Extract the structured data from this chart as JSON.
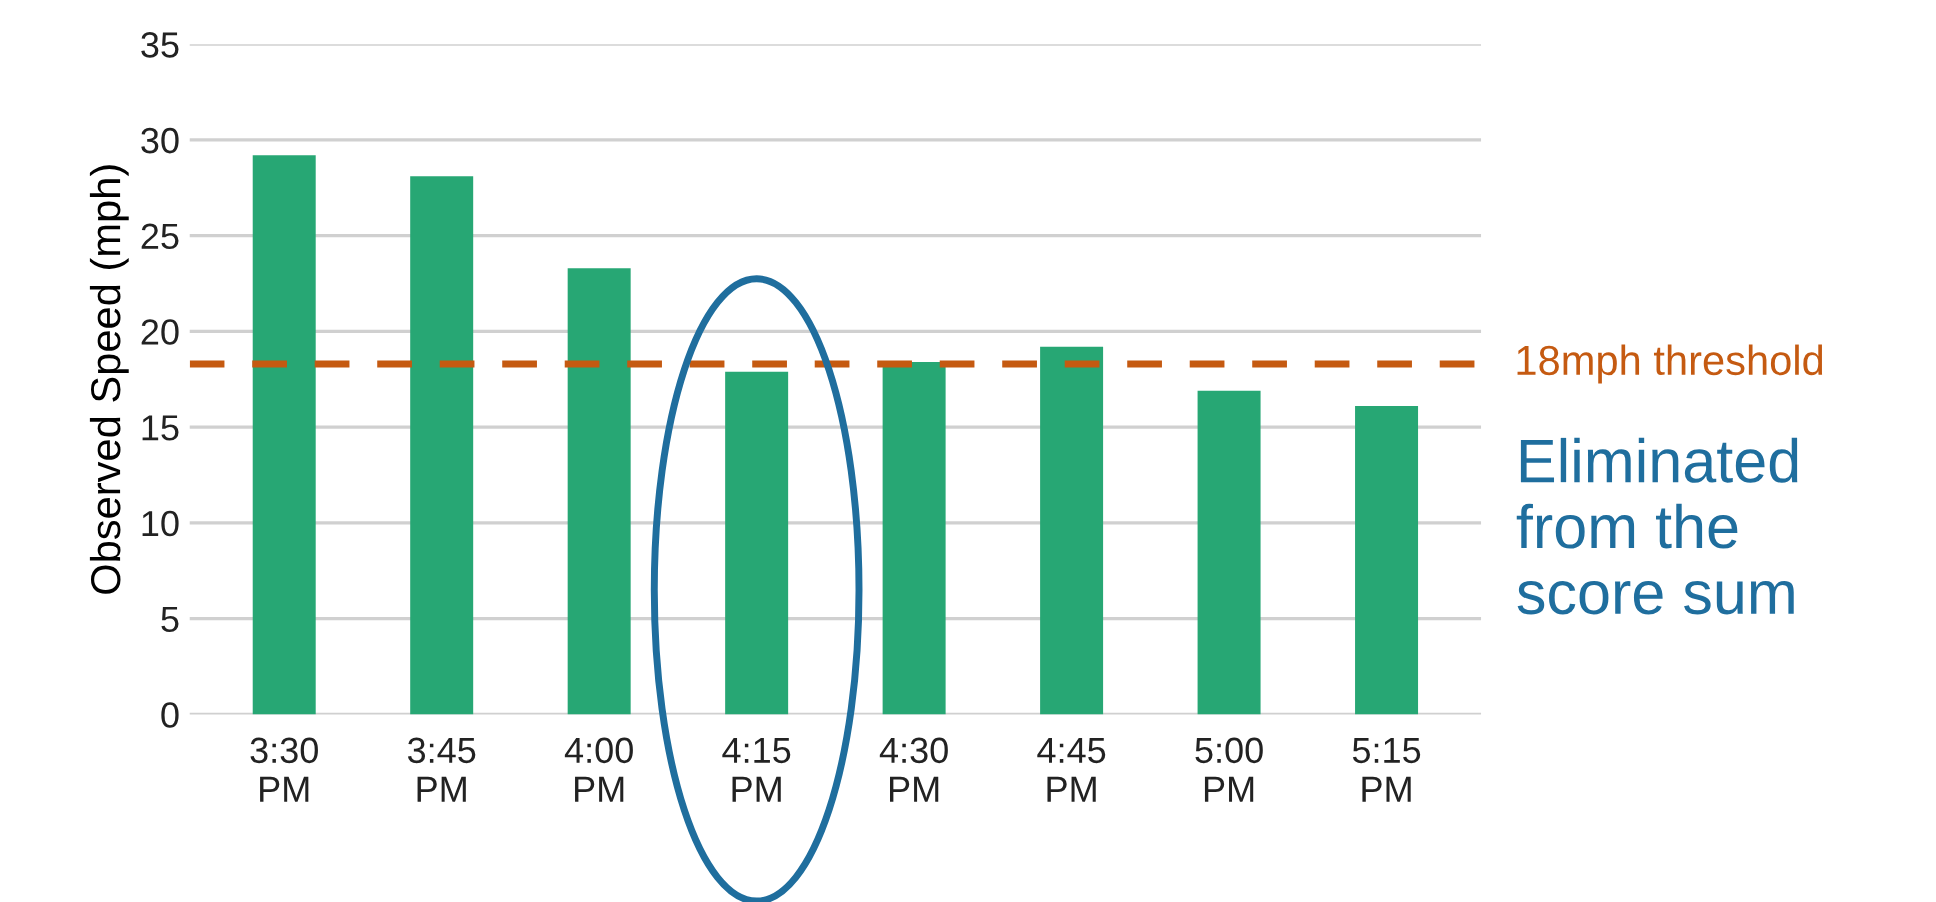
{
  "chart_data": {
    "type": "bar",
    "ylabel": "Observed Speed (mph)",
    "categories": [
      "3:30 PM",
      "3:45 PM",
      "4:00 PM",
      "4:15 PM",
      "4:30 PM",
      "4:45 PM",
      "5:00 PM",
      "5:15 PM"
    ],
    "values": [
      29.2,
      28.1,
      23.3,
      17.9,
      18.4,
      19.2,
      16.9,
      16.1
    ],
    "color": "#27a774",
    "ylim": [
      0,
      35
    ],
    "yticks": [
      0,
      5,
      10,
      15,
      20,
      25,
      30,
      35
    ],
    "grid": "y",
    "ref_lines": [
      {
        "axis": "y",
        "value": 18.3,
        "label": "18mph threshold",
        "color": "#c55a11",
        "line_style": "dashed"
      }
    ],
    "annotations": [
      "Eliminated from the score sum"
    ]
  }
}
